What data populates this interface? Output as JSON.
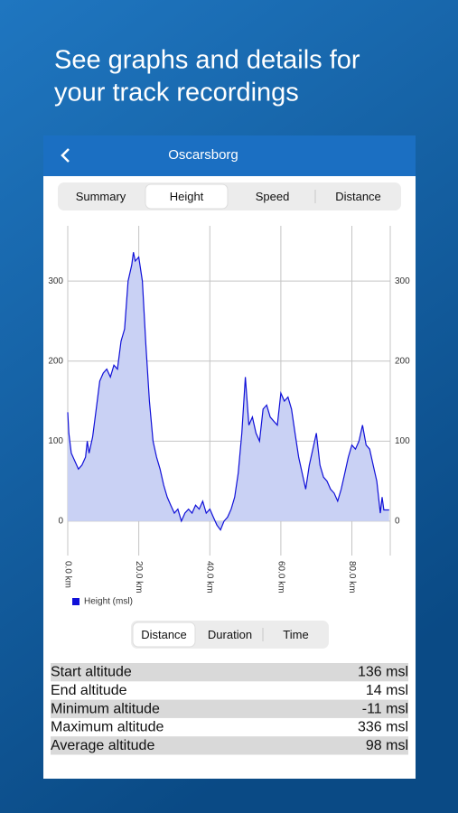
{
  "headline": [
    "See graphs and details for",
    "your track recordings"
  ],
  "header": {
    "title": "Oscarsborg"
  },
  "tabs": {
    "items": [
      "Summary",
      "Height",
      "Speed",
      "Distance"
    ],
    "selected": 1
  },
  "chart_data": {
    "type": "area",
    "x": [
      0,
      0.3,
      1,
      2,
      3,
      4,
      5,
      5.5,
      6,
      7,
      8,
      9,
      10,
      11,
      12,
      13,
      14,
      15,
      16,
      17,
      18,
      18.5,
      19,
      20,
      21,
      22,
      23,
      24,
      25,
      26,
      27,
      28,
      29,
      30,
      31,
      32,
      33,
      34,
      35,
      36,
      37,
      38,
      39,
      40,
      41,
      42,
      43,
      44,
      45,
      46,
      47,
      48,
      49,
      50,
      51,
      52,
      53,
      54,
      55,
      56,
      57,
      58,
      59,
      60,
      61,
      62,
      63,
      64,
      65,
      66,
      67,
      68,
      69,
      70,
      71,
      72,
      73,
      74,
      75,
      76,
      77,
      78,
      79,
      80,
      81,
      82,
      83,
      84,
      85,
      86,
      87,
      88,
      88.5,
      89,
      90.5
    ],
    "series": [
      {
        "name": "Height (msl)",
        "color": "#1010d8",
        "fill": "#c9d1f4",
        "values": [
          136,
          110,
          85,
          75,
          65,
          70,
          80,
          100,
          85,
          105,
          140,
          175,
          185,
          190,
          180,
          195,
          190,
          225,
          240,
          300,
          320,
          336,
          325,
          330,
          300,
          220,
          150,
          100,
          80,
          65,
          45,
          30,
          20,
          10,
          15,
          0,
          10,
          15,
          10,
          20,
          15,
          25,
          10,
          15,
          5,
          -5,
          -11,
          0,
          5,
          15,
          30,
          60,
          110,
          180,
          120,
          130,
          110,
          100,
          140,
          145,
          130,
          125,
          120,
          160,
          150,
          155,
          140,
          110,
          80,
          60,
          40,
          70,
          90,
          110,
          70,
          55,
          50,
          40,
          35,
          25,
          40,
          60,
          80,
          95,
          90,
          100,
          120,
          95,
          90,
          70,
          50,
          10,
          30,
          14,
          14
        ]
      }
    ],
    "xlim": [
      0,
      90.8
    ],
    "ylim": [
      -43,
      369
    ],
    "xticks": [
      {
        "value": 0,
        "label": "0.0 km"
      },
      {
        "value": 20,
        "label": "20.0 km"
      },
      {
        "value": 40,
        "label": "40.0 km"
      },
      {
        "value": 60,
        "label": "60.0 km"
      },
      {
        "value": 80,
        "label": "80.0 km"
      }
    ],
    "yticks": [
      0,
      100,
      200,
      300
    ],
    "grid": true,
    "legend": "bottom-left"
  },
  "modes": {
    "items": [
      "Distance",
      "Duration",
      "Time"
    ],
    "selected": 0
  },
  "stats": [
    [
      "Start altitude",
      "136 msl"
    ],
    [
      "End altitude",
      "14 msl"
    ],
    [
      "Minimum altitude",
      "-11 msl"
    ],
    [
      "Maximum altitude",
      "336 msl"
    ],
    [
      "Average altitude",
      "98 msl"
    ]
  ]
}
